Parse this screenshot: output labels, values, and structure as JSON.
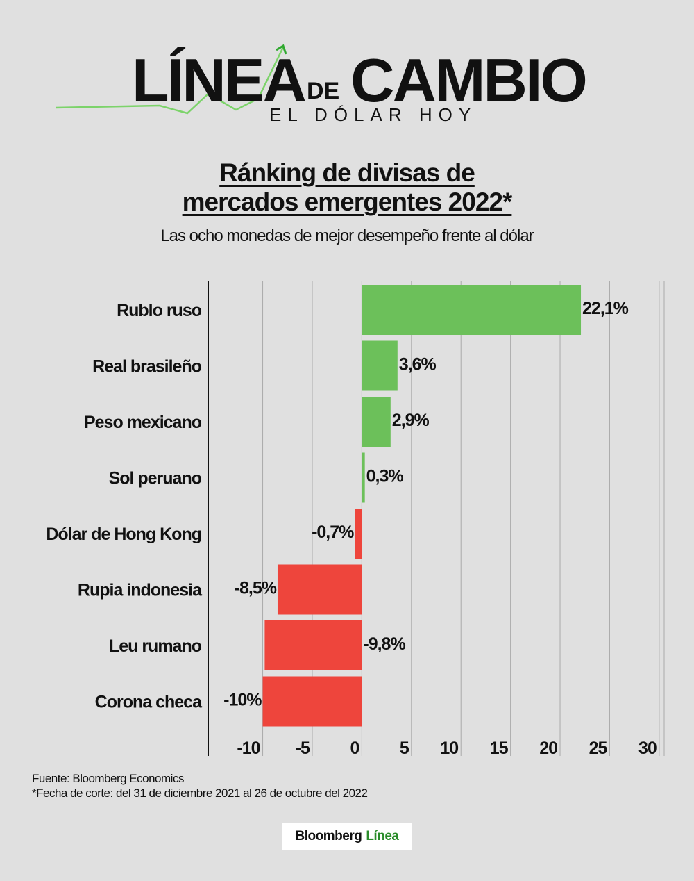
{
  "header": {
    "logo_word1": "LÍNEA",
    "logo_de": "DE",
    "logo_word2": "CAMBIO",
    "logo_sub": "EL DÓLAR HOY"
  },
  "title_line1": "Ránking de divisas de",
  "title_line2": "mercados emergentes 2022*",
  "subtitle": "Las ocho monedas de mejor desempeño frente al dólar",
  "chart_data": {
    "type": "bar",
    "orientation": "horizontal",
    "categories": [
      "Rublo ruso",
      "Real brasileño",
      "Peso mexicano",
      "Sol peruano",
      "Dólar de Hong Kong",
      "Rupia indonesia",
      "Leu rumano",
      "Corona checa"
    ],
    "values": [
      22.1,
      3.6,
      2.9,
      0.3,
      -0.7,
      -8.5,
      -9.8,
      -10
    ],
    "value_labels": [
      "22,1%",
      "3,6%",
      "2,9%",
      "0,3%",
      "-0,7%",
      "-8,5%",
      "-9,8%",
      "-10%"
    ],
    "xticks": [
      -10,
      -5,
      0,
      5,
      10,
      15,
      20,
      25,
      30
    ],
    "xlim": [
      -15.5,
      30.5
    ],
    "grid": true,
    "colors": {
      "positive": "#6cc05a",
      "negative": "#ee453c"
    }
  },
  "footer": {
    "source": "Fuente: Bloomberg Economics",
    "note": "*Fecha de corte: del 31 de diciembre 2021 al 26 de octubre del 2022",
    "brand_main": "Bloomberg",
    "brand_accent": "Línea"
  }
}
